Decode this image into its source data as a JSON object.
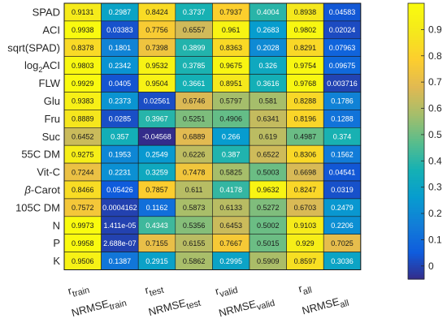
{
  "chart_data": {
    "type": "heatmap",
    "rows": [
      {
        "main": "SPAD"
      },
      {
        "main": "ACI"
      },
      {
        "main": "sqrt(SPAD)"
      },
      {
        "main": "log",
        "sub": "2",
        "tail": "ACI"
      },
      {
        "main": "FLW"
      },
      {
        "main": "Glu"
      },
      {
        "main": "Fru"
      },
      {
        "main": "Suc"
      },
      {
        "main": "55C DM"
      },
      {
        "main": "Vit-C"
      },
      {
        "main": "β-Carot",
        "italic_prefix": "β"
      },
      {
        "main": "105C DM"
      },
      {
        "main": "N"
      },
      {
        "main": "P"
      },
      {
        "main": "K"
      }
    ],
    "columns": [
      {
        "main": "r",
        "sub": "train"
      },
      {
        "main": "NRMSE",
        "sub": "train"
      },
      {
        "main": "r",
        "sub": "test"
      },
      {
        "main": "NRMSE",
        "sub": "test"
      },
      {
        "main": "r",
        "sub": "valid"
      },
      {
        "main": "NRMSE",
        "sub": "valid"
      },
      {
        "main": "r",
        "sub": "all"
      },
      {
        "main": "NRMSE",
        "sub": "all"
      }
    ],
    "values": [
      [
        "0.9131",
        "0.2987",
        "0.8424",
        "0.3737",
        "0.7937",
        "0.4004",
        "0.8938",
        "0.04583"
      ],
      [
        "0.9938",
        "0.03383",
        "0.7756",
        "0.6557",
        "0.961",
        "0.2683",
        "0.9802",
        "0.02024"
      ],
      [
        "0.8378",
        "0.1801",
        "0.7398",
        "0.3899",
        "0.8363",
        "0.2028",
        "0.8291",
        "0.07963"
      ],
      [
        "0.9803",
        "0.2342",
        "0.9532",
        "0.3785",
        "0.9675",
        "0.326",
        "0.9754",
        "0.09675"
      ],
      [
        "0.9929",
        "0.0405",
        "0.9504",
        "0.3661",
        "0.8951",
        "0.3616",
        "0.9768",
        "0.003716"
      ],
      [
        "0.9383",
        "0.2373",
        "0.02561",
        "0.6746",
        "0.5797",
        "0.581",
        "0.8288",
        "0.1786"
      ],
      [
        "0.8889",
        "0.0285",
        "0.3967",
        "0.5251",
        "0.4906",
        "0.6341",
        "0.8196",
        "0.1288"
      ],
      [
        "0.6452",
        "0.357",
        "-0.04568",
        "0.6889",
        "0.266",
        "0.619",
        "0.4987",
        "0.374"
      ],
      [
        "0.9275",
        "0.1953",
        "0.2549",
        "0.6226",
        "0.387",
        "0.6522",
        "0.8306",
        "0.1562"
      ],
      [
        "0.7244",
        "0.2231",
        "0.3259",
        "0.7478",
        "0.5825",
        "0.5003",
        "0.6698",
        "0.04541"
      ],
      [
        "0.8466",
        "0.05426",
        "0.7857",
        "0.611",
        "0.4178",
        "0.9632",
        "0.8247",
        "0.0319"
      ],
      [
        "0.7572",
        "0.0004162",
        "0.1162",
        "0.5873",
        "0.6133",
        "0.5272",
        "0.6703",
        "0.2479"
      ],
      [
        "0.9973",
        "1.411e-05",
        "0.4343",
        "0.5356",
        "0.6453",
        "0.5002",
        "0.9103",
        "0.2206"
      ],
      [
        "0.9958",
        "2.688e-07",
        "0.7155",
        "0.6155",
        "0.7667",
        "0.5015",
        "0.929",
        "0.7025"
      ],
      [
        "0.9506",
        "0.1387",
        "0.2915",
        "0.5862",
        "0.2995",
        "0.5909",
        "0.8597",
        "0.3036"
      ]
    ],
    "colorbar": {
      "colormap": "parula",
      "range": [
        -0.05,
        1.0
      ],
      "ticks": [
        "0",
        "0.1",
        "0.2",
        "0.3",
        "0.4",
        "0.5",
        "0.6",
        "0.7",
        "0.8",
        "0.9"
      ]
    },
    "text_colors": {
      "light": "#ffffff",
      "dark": "#1a1a1a"
    }
  }
}
